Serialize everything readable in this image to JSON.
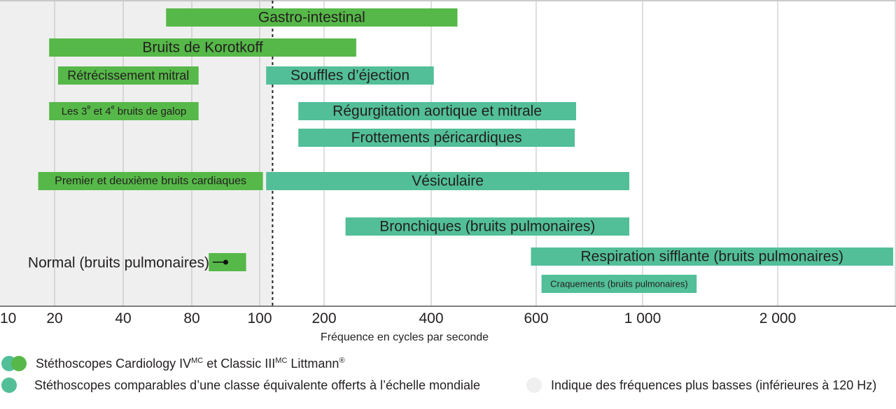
{
  "colors": {
    "littmann_green": "#56b848",
    "comparable_teal": "#52bf98",
    "low_freq_shade": "#efefef",
    "grid": "#bdbdbd",
    "text": "#231f20"
  },
  "chart_data": {
    "type": "bar",
    "orientation": "horizontal-range",
    "xlabel": "Fréquence en cycles par seconde",
    "x_ticks": [
      10,
      20,
      40,
      80,
      100,
      200,
      400,
      600,
      1000,
      2000
    ],
    "x_tick_labels": [
      "10",
      "20",
      "40",
      "80",
      "100",
      "200",
      "400",
      "600",
      "1 000",
      "2 000"
    ],
    "x_scale": "ordinal (irregular spacing between tick values)",
    "threshold": {
      "value": 120,
      "style": "dashed vertical line",
      "shaded_region": "below"
    },
    "series": [
      {
        "name": "Stéthoscopes Cardiology IV et Classic III Littmann",
        "color": "#56b848"
      },
      {
        "name": "Stéthoscopes comparables d’une classe équivalente offerts à l’échelle mondiale",
        "color": "#52bf98"
      }
    ],
    "bars": [
      {
        "label": "Gastro-intestinal",
        "start": 65,
        "end": 450,
        "series": 0
      },
      {
        "label": "Bruits de Korotkoff",
        "start": 19,
        "end": 260,
        "series": 0
      },
      {
        "label": "Rétrécissement mitral",
        "start": 21,
        "end": 82,
        "series": 0
      },
      {
        "label": "Souffles d’éjection",
        "start": 110,
        "end": 405,
        "series": 1
      },
      {
        "label_parts": [
          "Les 3",
          "e",
          " et 4",
          "e",
          " bruits de galop"
        ],
        "start": 19,
        "end": 82,
        "series": 0
      },
      {
        "label": "Régurgitation aortique et mitrale",
        "start": 160,
        "end": 750,
        "series": 1
      },
      {
        "label": "Frottements péricardiques",
        "start": 160,
        "end": 745,
        "series": 1
      },
      {
        "label": "Premier et deuxième bruits cardiaques",
        "start": 17,
        "end": 105,
        "series": 0
      },
      {
        "label": "Vésiculaire",
        "start": 110,
        "end": 950,
        "series": 1
      },
      {
        "label": "Bronchiques (bruits pulmonaires)",
        "start": 240,
        "end": 950,
        "series": 1
      },
      {
        "label": "Respiration sifflante (bruits pulmonaires)",
        "start": 590,
        "end": 3000,
        "series": 1
      },
      {
        "label": "Craquements (bruits pulmonaires)",
        "start": 620,
        "end": 1400,
        "series": 1
      }
    ],
    "annotation": {
      "label": "Normal (bruits pulmonaires)",
      "bar_start": 85,
      "bar_end": 96,
      "marker_value": 90
    }
  },
  "legend": {
    "item1_parts": [
      "Stéthoscopes Cardiology IV",
      "MC",
      " et Classic III",
      "MC",
      " Littmann",
      "®"
    ],
    "item2": "Stéthoscopes comparables d’une classe équivalente offerts à l’échelle mondiale",
    "item3": "Indique des fréquences plus basses (inférieures à 120 Hz)"
  }
}
